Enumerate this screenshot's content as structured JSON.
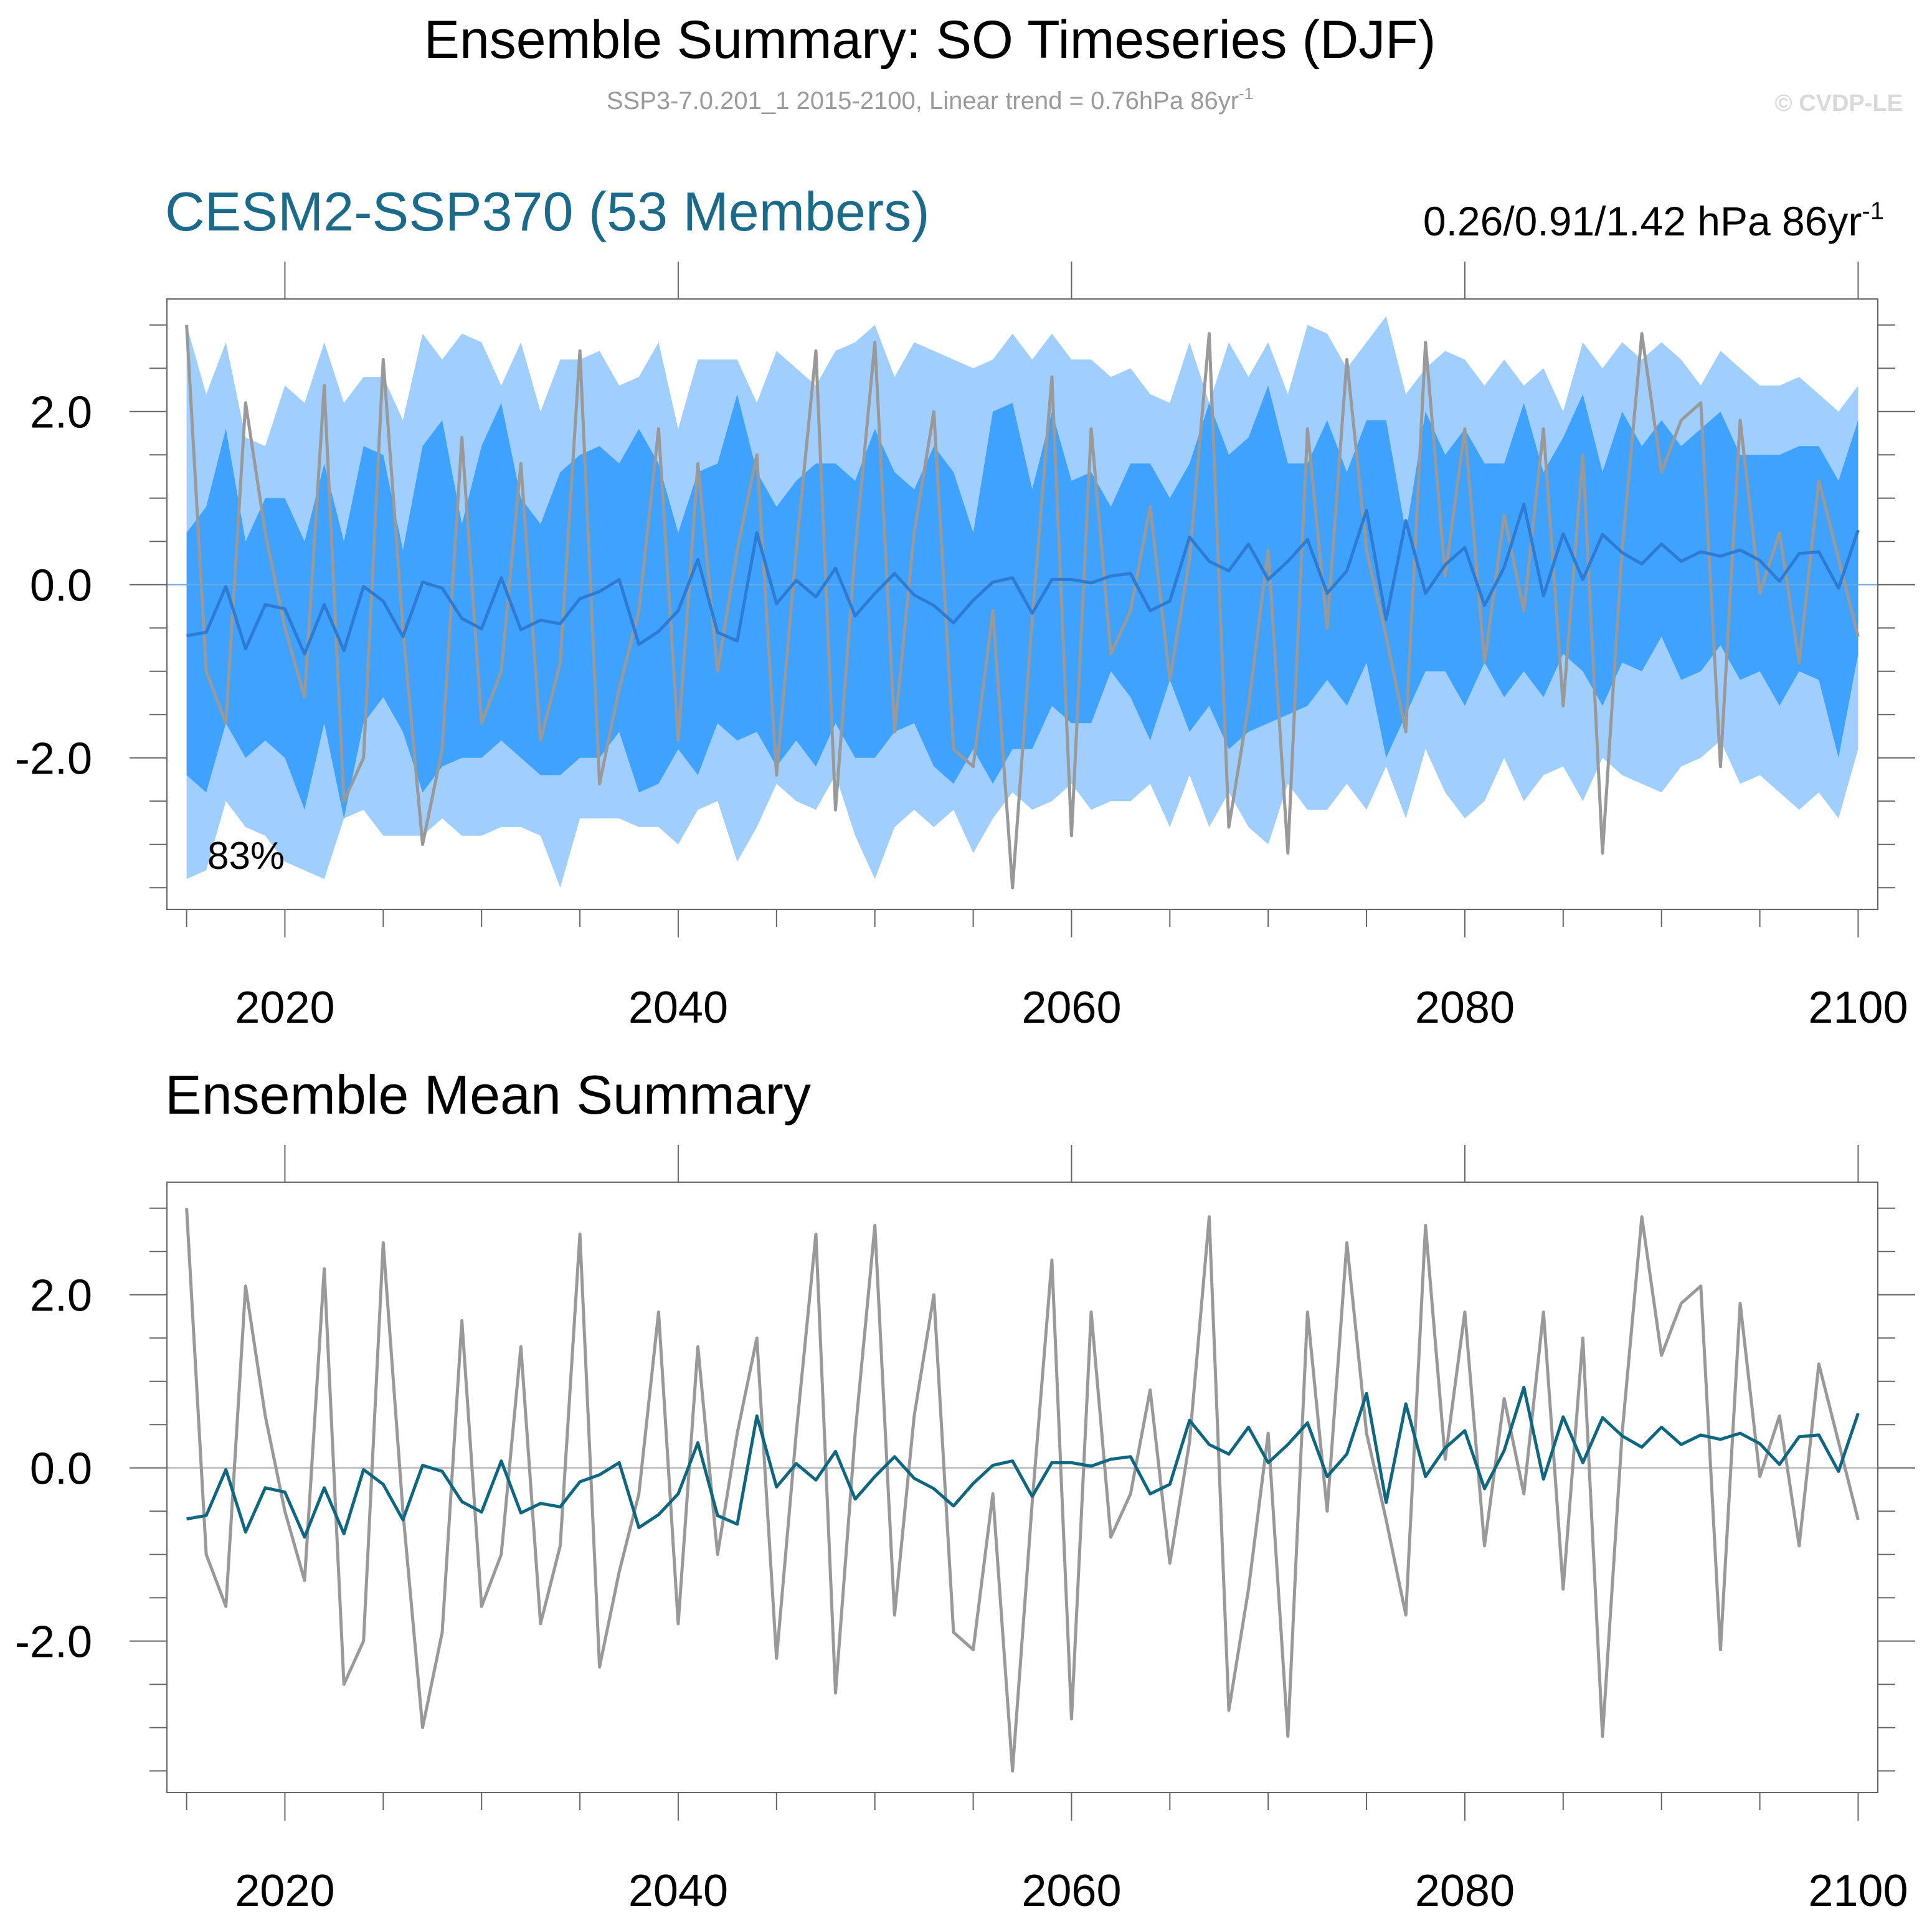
{
  "header": {
    "title": "Ensemble Summary: SO Timeseries (DJF)",
    "subtitle": "SSP3-7.0.201_1 2015-2100, Linear trend = 0.76hPa 86yr",
    "subtitle_sup": "-1",
    "watermark": "© CVDP-LE"
  },
  "colors": {
    "outer_band": "#a0cfff",
    "inner_band": "#3fa2ff",
    "ensemble_mean_top": "#2d7bd3",
    "ensemble_mean_bottom": "#0f6680",
    "observation": "#999999",
    "model_title": "#1b6a8a",
    "axis": "#444444",
    "zero_line": "#aaaaaa"
  },
  "chart_data": [
    {
      "type": "area",
      "title": "CESM2-SSP370 (53 Members)",
      "trend_label": "0.26/0.91/1.42 hPa 86yr",
      "trend_sup": "-1",
      "annotation": "83%",
      "xlim": [
        2014,
        2101
      ],
      "ylim": [
        -3.75,
        3.3
      ],
      "xticks_major": [
        2020,
        2040,
        2060,
        2080,
        2100
      ],
      "yticks_major": [
        -2.0,
        0.0,
        2.0
      ],
      "ytick_labels": [
        "-2.0",
        "0.0",
        "2.0"
      ],
      "x": [
        2015,
        2016,
        2017,
        2018,
        2019,
        2020,
        2021,
        2022,
        2023,
        2024,
        2025,
        2026,
        2027,
        2028,
        2029,
        2030,
        2031,
        2032,
        2033,
        2034,
        2035,
        2036,
        2037,
        2038,
        2039,
        2040,
        2041,
        2042,
        2043,
        2044,
        2045,
        2046,
        2047,
        2048,
        2049,
        2050,
        2051,
        2052,
        2053,
        2054,
        2055,
        2056,
        2057,
        2058,
        2059,
        2060,
        2061,
        2062,
        2063,
        2064,
        2065,
        2066,
        2067,
        2068,
        2069,
        2070,
        2071,
        2072,
        2073,
        2074,
        2075,
        2076,
        2077,
        2078,
        2079,
        2080,
        2081,
        2082,
        2083,
        2084,
        2085,
        2086,
        2087,
        2088,
        2089,
        2090,
        2091,
        2092,
        2093,
        2094,
        2095,
        2096,
        2097,
        2098,
        2099,
        2100
      ],
      "series": [
        {
          "name": "Ensemble 2nd-98th percentile (upper)",
          "values": [
            3.0,
            2.2,
            2.8,
            1.7,
            1.6,
            2.3,
            2.1,
            2.8,
            2.1,
            2.4,
            2.4,
            1.9,
            2.9,
            2.6,
            2.9,
            2.8,
            2.3,
            2.8,
            2.0,
            2.6,
            2.6,
            2.7,
            2.3,
            2.4,
            2.8,
            1.8,
            2.6,
            2.6,
            2.6,
            2.1,
            2.7,
            2.5,
            2.3,
            2.7,
            2.8,
            3.0,
            2.4,
            2.8,
            2.7,
            2.6,
            2.5,
            2.6,
            2.9,
            2.6,
            2.9,
            2.6,
            2.6,
            2.4,
            2.5,
            2.2,
            2.1,
            2.8,
            2.1,
            2.8,
            2.4,
            2.8,
            2.2,
            3.0,
            2.9,
            2.5,
            2.8,
            3.1,
            2.2,
            2.5,
            2.7,
            2.6,
            2.3,
            2.6,
            2.3,
            2.5,
            2.0,
            2.8,
            2.5,
            2.8,
            2.6,
            2.8,
            2.6,
            2.3,
            2.7,
            2.5,
            2.3,
            2.3,
            2.4,
            2.2,
            2.0,
            2.3
          ]
        },
        {
          "name": "Ensemble 16th-84th percentile (upper)",
          "values": [
            0.6,
            0.9,
            1.8,
            0.5,
            1.0,
            1.0,
            0.5,
            1.4,
            0.5,
            1.6,
            1.5,
            0.4,
            1.6,
            1.9,
            0.7,
            1.6,
            2.1,
            1.0,
            0.7,
            1.3,
            1.5,
            1.6,
            1.4,
            1.8,
            1.4,
            0.6,
            1.3,
            1.4,
            2.2,
            1.3,
            0.9,
            1.2,
            1.4,
            1.4,
            1.2,
            1.8,
            1.3,
            1.1,
            1.6,
            1.3,
            0.6,
            2.0,
            2.1,
            1.1,
            2.0,
            1.2,
            1.3,
            0.9,
            1.4,
            1.4,
            1.0,
            1.4,
            2.1,
            1.5,
            1.7,
            2.3,
            1.4,
            1.4,
            1.9,
            1.3,
            1.9,
            1.9,
            0.6,
            2.0,
            1.5,
            1.8,
            1.4,
            1.4,
            2.1,
            1.3,
            1.7,
            2.2,
            1.3,
            2.0,
            1.6,
            1.9,
            1.6,
            1.8,
            2.0,
            1.5,
            1.5,
            1.5,
            1.6,
            1.6,
            1.2,
            1.9
          ]
        },
        {
          "name": "Ensemble 16th-84th percentile (lower)",
          "values": [
            -2.2,
            -2.4,
            -1.6,
            -2.0,
            -1.8,
            -2.0,
            -2.6,
            -1.6,
            -2.7,
            -1.6,
            -1.3,
            -1.7,
            -2.4,
            -2.1,
            -2.0,
            -2.0,
            -1.8,
            -2.0,
            -2.2,
            -2.2,
            -2.0,
            -2.0,
            -1.7,
            -2.4,
            -2.3,
            -1.9,
            -2.2,
            -1.6,
            -1.8,
            -1.7,
            -2.1,
            -1.8,
            -2.1,
            -1.6,
            -2.0,
            -2.0,
            -1.7,
            -1.6,
            -2.1,
            -2.3,
            -1.9,
            -2.3,
            -1.9,
            -1.9,
            -1.4,
            -1.6,
            -1.6,
            -1.0,
            -1.3,
            -1.8,
            -1.1,
            -1.7,
            -1.4,
            -1.9,
            -1.7,
            -1.6,
            -1.5,
            -1.4,
            -1.1,
            -1.4,
            -0.9,
            -2.0,
            -1.5,
            -1.0,
            -1.0,
            -1.4,
            -0.9,
            -1.3,
            -1.0,
            -1.3,
            -0.8,
            -1.0,
            -1.4,
            -0.9,
            -1.0,
            -0.6,
            -1.1,
            -1.0,
            -0.7,
            -1.1,
            -1.0,
            -1.4,
            -1.0,
            -1.1,
            -2.0,
            -0.8
          ]
        },
        {
          "name": "Ensemble 2nd-98th percentile (lower)",
          "values": [
            -3.4,
            -3.3,
            -2.5,
            -2.8,
            -2.9,
            -3.2,
            -3.3,
            -3.4,
            -2.7,
            -2.6,
            -2.9,
            -2.9,
            -2.9,
            -2.7,
            -2.9,
            -2.9,
            -2.8,
            -2.8,
            -2.9,
            -3.5,
            -2.7,
            -2.7,
            -2.7,
            -2.8,
            -2.8,
            -3.0,
            -2.6,
            -2.5,
            -3.2,
            -2.8,
            -2.3,
            -2.5,
            -2.6,
            -2.2,
            -2.9,
            -3.4,
            -2.8,
            -2.6,
            -2.8,
            -2.6,
            -3.1,
            -2.7,
            -2.4,
            -2.6,
            -2.5,
            -2.3,
            -2.6,
            -2.5,
            -2.5,
            -2.3,
            -2.8,
            -2.2,
            -2.8,
            -2.4,
            -2.8,
            -3.0,
            -2.3,
            -2.6,
            -2.6,
            -2.3,
            -2.6,
            -2.1,
            -2.7,
            -1.9,
            -2.4,
            -2.7,
            -2.5,
            -2.0,
            -2.5,
            -2.2,
            -2.1,
            -2.5,
            -2.0,
            -2.2,
            -2.3,
            -2.4,
            -2.1,
            -2.0,
            -1.8,
            -2.3,
            -2.2,
            -2.4,
            -2.6,
            -2.4,
            -2.7,
            -1.9
          ]
        },
        {
          "name": "Ensemble mean",
          "values": [
            -0.59,
            -0.55,
            -0.02,
            -0.74,
            -0.23,
            -0.28,
            -0.8,
            -0.23,
            -0.76,
            -0.02,
            -0.19,
            -0.6,
            0.03,
            -0.04,
            -0.39,
            -0.51,
            0.08,
            -0.52,
            -0.41,
            -0.45,
            -0.16,
            -0.08,
            0.06,
            -0.69,
            -0.54,
            -0.3,
            0.29,
            -0.55,
            -0.65,
            0.6,
            -0.22,
            0.05,
            -0.14,
            0.19,
            -0.36,
            -0.1,
            0.13,
            -0.12,
            -0.24,
            -0.44,
            -0.18,
            0.03,
            0.08,
            -0.33,
            0.06,
            0.06,
            0.02,
            0.1,
            0.13,
            -0.3,
            -0.19,
            0.55,
            0.27,
            0.16,
            0.47,
            0.06,
            0.27,
            0.52,
            -0.1,
            0.16,
            0.86,
            -0.4,
            0.74,
            -0.1,
            0.23,
            0.43,
            -0.24,
            0.2,
            0.93,
            -0.13,
            0.59,
            0.06,
            0.58,
            0.37,
            0.24,
            0.47,
            0.27,
            0.38,
            0.33,
            0.4,
            0.28,
            0.04,
            0.36,
            0.38,
            -0.04,
            0.63
          ]
        },
        {
          "name": "Observation",
          "values": [
            3.0,
            -1.0,
            -1.6,
            2.1,
            0.6,
            -0.5,
            -1.3,
            2.3,
            -2.5,
            -2.0,
            2.6,
            -0.5,
            -3.0,
            -1.9,
            1.7,
            -1.6,
            -1.0,
            1.4,
            -1.8,
            -0.9,
            2.7,
            -2.3,
            -1.2,
            -0.3,
            1.8,
            -1.8,
            1.4,
            -1.0,
            0.4,
            1.5,
            -2.2,
            0.4,
            2.7,
            -2.6,
            0.4,
            2.8,
            -1.7,
            0.6,
            2.0,
            -1.9,
            -2.1,
            -0.3,
            -3.5,
            -0.4,
            2.4,
            -2.9,
            1.8,
            -0.8,
            -0.3,
            0.9,
            -1.1,
            0.3,
            2.9,
            -2.8,
            -1.4,
            0.4,
            -3.1,
            1.8,
            -0.5,
            2.6,
            0.4,
            -0.6,
            -1.7,
            2.8,
            0.1,
            1.8,
            -0.9,
            0.8,
            -0.3,
            1.8,
            -1.4,
            1.5,
            -3.1,
            0.4,
            2.9,
            1.3,
            1.9,
            2.1,
            -2.1,
            1.9,
            -0.1,
            0.6,
            -0.9,
            1.2,
            0.3,
            -0.6
          ]
        }
      ]
    },
    {
      "type": "line",
      "title": "Ensemble Mean Summary",
      "xlim": [
        2014,
        2101
      ],
      "ylim": [
        -3.75,
        3.3
      ],
      "xticks_major": [
        2020,
        2040,
        2060,
        2080,
        2100
      ],
      "yticks_major": [
        -2.0,
        0.0,
        2.0
      ],
      "ytick_labels": [
        "-2.0",
        "0.0",
        "2.0"
      ],
      "x_from": 0,
      "series_from": [
        4,
        5
      ]
    }
  ]
}
